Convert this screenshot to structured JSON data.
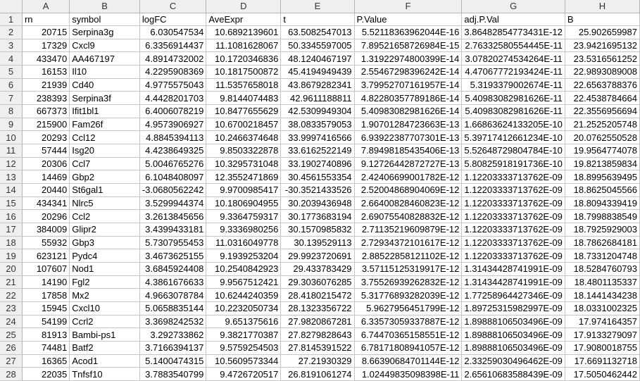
{
  "columns": [
    "A",
    "B",
    "C",
    "D",
    "E",
    "F",
    "G",
    "H"
  ],
  "rows": [
    {
      "n": "1",
      "cells": [
        "rn",
        "symbol",
        "logFC",
        "AveExpr",
        "t",
        "P.Value",
        "adj.P.Val",
        "B"
      ]
    },
    {
      "n": "2",
      "cells": [
        "20715",
        "Serpina3g",
        "6.030547534",
        "10.6892139601",
        "63.5082547013",
        "5.52118363962044E-16",
        "3.86482854773431E-12",
        "25.902659987"
      ]
    },
    {
      "n": "3",
      "cells": [
        "17329",
        "Cxcl9",
        "6.3356914437",
        "11.1081628067",
        "50.3345597005",
        "7.89521658726984E-15",
        "2.76332580554445E-11",
        "23.9421695132"
      ]
    },
    {
      "n": "4",
      "cells": [
        "433470",
        "AA467197",
        "4.8914732002",
        "10.1720346836",
        "48.1240467197",
        "1.31922974800399E-14",
        "3.07820274534264E-11",
        "23.5316561252"
      ]
    },
    {
      "n": "5",
      "cells": [
        "16153",
        "Il10",
        "4.2295908369",
        "10.1817500872",
        "45.4194949439",
        "2.55467298396242E-14",
        "4.47067772193424E-11",
        "22.9893089008"
      ]
    },
    {
      "n": "6",
      "cells": [
        "21939",
        "Cd40",
        "4.9775575043",
        "11.5357658018",
        "43.8679282341",
        "3.79952707161957E-14",
        "5.3193379002674E-11",
        "22.6563788376"
      ]
    },
    {
      "n": "7",
      "cells": [
        "238393",
        "Serpina3f",
        "4.4428201703",
        "9.8144074483",
        "42.9611188811",
        "4.82280357789186E-14",
        "5.40983082981626E-11",
        "22.4538784664"
      ]
    },
    {
      "n": "8",
      "cells": [
        "667373",
        "Ifit1bl1",
        "6.4006078219",
        "10.8477655629",
        "42.5309949304",
        "5.40983082981626E-14",
        "5.40983082981626E-11",
        "22.3556956694"
      ]
    },
    {
      "n": "9",
      "cells": [
        "215900",
        "Fam26f",
        "4.9573906927",
        "10.6700218457",
        "38.0833579053",
        "1.90701284723663E-13",
        "1.66863624133205E-10",
        "21.2525205748"
      ]
    },
    {
      "n": "10",
      "cells": [
        "20293",
        "Ccl12",
        "4.8845394113",
        "10.2466374648",
        "33.9997416566",
        "6.93922387707301E-13",
        "5.39717412661234E-10",
        "20.0762550528"
      ]
    },
    {
      "n": "11",
      "cells": [
        "57444",
        "Isg20",
        "4.4238649325",
        "9.8503322878",
        "33.6162522149",
        "7.89498185435406E-13",
        "5.52648729804784E-10",
        "19.9564774078"
      ]
    },
    {
      "n": "12",
      "cells": [
        "20306",
        "Ccl7",
        "5.0046765276",
        "10.3295731048",
        "33.1902740896",
        "9.12726442872727E-13",
        "5.80825918191736E-10",
        "19.8213859834"
      ]
    },
    {
      "n": "13",
      "cells": [
        "14469",
        "Gbp2",
        "6.1048408097",
        "12.3552471869",
        "30.4561553354",
        "2.42406699001782E-12",
        "1.12203333713762E-09",
        "18.8995639495"
      ]
    },
    {
      "n": "14",
      "cells": [
        "20440",
        "St6gal1",
        "-3.0680562242",
        "9.9700985417",
        "-30.3521433526",
        "2.52004868904069E-12",
        "1.12203333713762E-09",
        "18.8625045566"
      ]
    },
    {
      "n": "15",
      "cells": [
        "434341",
        "Nlrc5",
        "3.5299944374",
        "10.1806904955",
        "30.2039436948",
        "2.66400828460823E-12",
        "1.12203333713762E-09",
        "18.8094339419"
      ]
    },
    {
      "n": "16",
      "cells": [
        "20296",
        "Ccl2",
        "3.2613845656",
        "9.3364759317",
        "30.1773683194",
        "2.69075540828832E-12",
        "1.12203333713762E-09",
        "18.7998838549"
      ]
    },
    {
      "n": "17",
      "cells": [
        "384009",
        "Glipr2",
        "3.4399433181",
        "9.3336980256",
        "30.1570985832",
        "2.71135219609879E-12",
        "1.12203333713762E-09",
        "18.7925929003"
      ]
    },
    {
      "n": "18",
      "cells": [
        "55932",
        "Gbp3",
        "5.7307955453",
        "11.0316049778",
        "30.139529113",
        "2.72934372101617E-12",
        "1.12203333713762E-09",
        "18.7862684181"
      ]
    },
    {
      "n": "19",
      "cells": [
        "623121",
        "Pydc4",
        "3.4673625155",
        "9.1939253204",
        "29.9923720691",
        "2.88522858121102E-12",
        "1.12203333713762E-09",
        "18.7331204748"
      ]
    },
    {
      "n": "20",
      "cells": [
        "107607",
        "Nod1",
        "3.6845924408",
        "10.2540842923",
        "29.433783429",
        "3.57115125319917E-12",
        "1.31434428741991E-09",
        "18.5284760793"
      ]
    },
    {
      "n": "21",
      "cells": [
        "14190",
        "Fgl2",
        "4.3861676633",
        "9.9567512421",
        "29.3036076285",
        "3.75526939262832E-12",
        "1.31434428741991E-09",
        "18.4801135337"
      ]
    },
    {
      "n": "22",
      "cells": [
        "17858",
        "Mx2",
        "4.9663078784",
        "10.6244240359",
        "28.4180215472",
        "5.31776893282039E-12",
        "1.77258964427346E-09",
        "18.1441434238"
      ]
    },
    {
      "n": "23",
      "cells": [
        "15945",
        "Cxcl10",
        "5.0658835144",
        "10.2232050734",
        "28.1323356722",
        "5.9627956451799E-12",
        "1.89725315982997E-09",
        "18.0331002325"
      ]
    },
    {
      "n": "24",
      "cells": [
        "54199",
        "Ccrl2",
        "3.3698242532",
        "9.651375616",
        "27.9820867281",
        "6.33573059337887E-12",
        "1.89888106503496E-09",
        "17.974164357"
      ]
    },
    {
      "n": "25",
      "cells": [
        "81913",
        "Bambi-ps1",
        "3.292733862",
        "9.3821770387",
        "27.8279828643",
        "6.74470365158551E-12",
        "1.89888106503496E-09",
        "17.9133279097"
      ]
    },
    {
      "n": "26",
      "cells": [
        "74481",
        "Batf2",
        "3.7166394137",
        "9.5759254503",
        "27.8145391522",
        "6.78171808941057E-12",
        "1.89888106503496E-09",
        "17.9080018755"
      ]
    },
    {
      "n": "27",
      "cells": [
        "16365",
        "Acod1",
        "5.1400474315",
        "10.5609573344",
        "27.21930329",
        "8.66390684701144E-12",
        "2.33259030496462E-09",
        "17.6691132718"
      ]
    },
    {
      "n": "28",
      "cells": [
        "22035",
        "Tnfsf10",
        "3.7883540799",
        "9.4726720517",
        "26.8191061274",
        "1.02449835098398E-11",
        "2.65610683588439E-09",
        "17.5050462442"
      ]
    }
  ]
}
